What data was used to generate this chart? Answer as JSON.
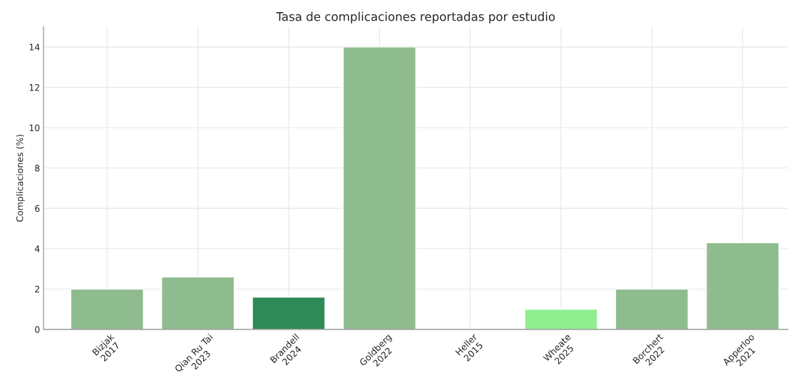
{
  "chart_data": {
    "type": "bar",
    "title": "Tasa de complicaciones reportadas por estudio",
    "ylabel": "Complicaciones (%)",
    "categories": [
      "Bizjak\n2017",
      "Qian Ru Tai\n2023",
      "Brandell\n2024",
      "Goldberg\n2022",
      "Heller\n2015",
      "Wheate\n2025",
      "Borchert\n2022",
      "Apperloo\n2021"
    ],
    "values": [
      2,
      2.6,
      1.6,
      14,
      null,
      1,
      2,
      4.3
    ],
    "colors": [
      "#8fbc8f",
      "#8fbc8f",
      "#2e8b57",
      "#8fbc8f",
      null,
      "#90ee90",
      "#8fbc8f",
      "#8fbc8f"
    ],
    "ylim": [
      0,
      15
    ],
    "yticks": [
      0,
      2,
      4,
      6,
      8,
      10,
      12,
      14
    ],
    "grid": true
  }
}
